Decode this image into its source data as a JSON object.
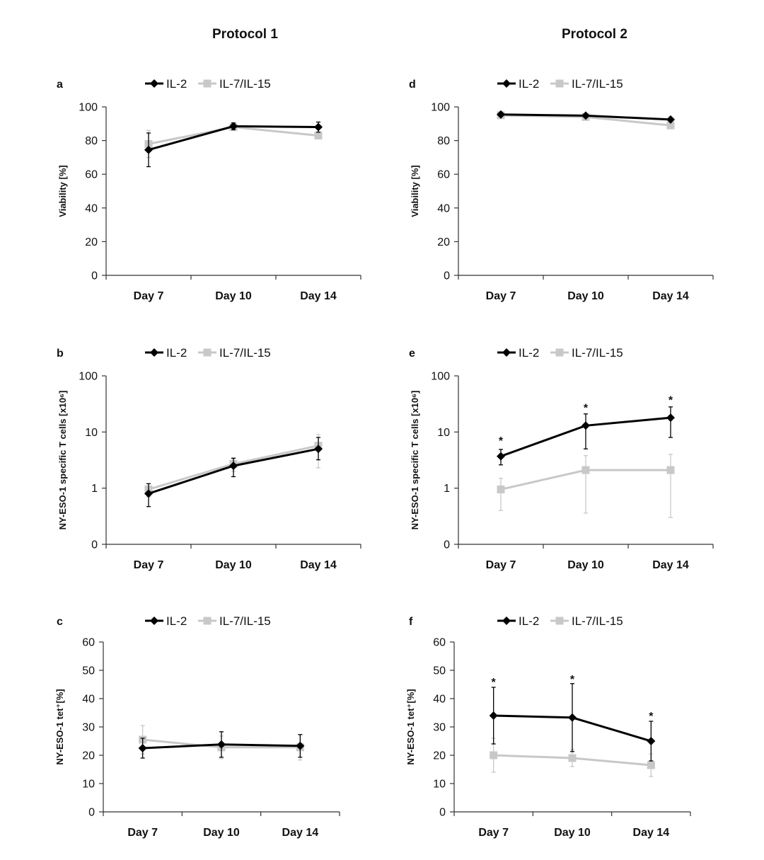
{
  "column_titles": [
    "Protocol 1",
    "Protocol 2"
  ],
  "colors": {
    "il2": "#000000",
    "il7": "#c8c8c8"
  },
  "chart_data": [
    {
      "panel": "a",
      "type": "line",
      "ylabel": "Viability [%]",
      "categories": [
        "Day 7",
        "Day 10",
        "Day 14"
      ],
      "yscale": "linear",
      "ylim": [
        0,
        100
      ],
      "yticks": [
        0,
        20,
        40,
        60,
        80,
        100
      ],
      "legend": "top",
      "series": [
        {
          "name": "IL-2",
          "marker": "diamond",
          "values": [
            74.5,
            88.5,
            88
          ],
          "errors": [
            10,
            2,
            3
          ]
        },
        {
          "name": "IL-7/IL-15",
          "marker": "square",
          "values": [
            78,
            88,
            83
          ],
          "errors": [
            8,
            2,
            1
          ]
        }
      ],
      "annotations": []
    },
    {
      "panel": "b",
      "type": "line",
      "ylabel": "NY-ESO-1 specific T cells [x10⁶]",
      "categories": [
        "Day 7",
        "Day 10",
        "Day 14"
      ],
      "yscale": "log",
      "ylim": [
        0.1,
        100
      ],
      "yticks": [
        0.1,
        1,
        10,
        100
      ],
      "ytick_labels": [
        "0",
        "1",
        "10",
        "100"
      ],
      "legend": "top",
      "series": [
        {
          "name": "IL-2",
          "marker": "diamond",
          "values": [
            0.8,
            2.5,
            5.0
          ],
          "err_low": [
            0.47,
            1.6,
            3.2
          ],
          "err_high": [
            1.2,
            3.4,
            8.0
          ]
        },
        {
          "name": "IL-7/IL-15",
          "marker": "square",
          "values": [
            0.95,
            2.7,
            5.7
          ],
          "err_low": [
            0.7,
            2.0,
            2.3
          ],
          "err_high": [
            1.2,
            3.5,
            9.0
          ]
        }
      ],
      "annotations": []
    },
    {
      "panel": "c",
      "type": "line",
      "ylabel": "NY-ESO-1 tet⁺[%]",
      "categories": [
        "Day 7",
        "Day 10",
        "Day 14"
      ],
      "yscale": "linear",
      "ylim": [
        0,
        60
      ],
      "yticks": [
        0,
        10,
        20,
        30,
        40,
        50,
        60
      ],
      "legend": "top",
      "series": [
        {
          "name": "IL-2",
          "marker": "diamond",
          "values": [
            22.5,
            23.8,
            23.3
          ],
          "errors": [
            3.5,
            4.5,
            4.0
          ]
        },
        {
          "name": "IL-7/IL-15",
          "marker": "square",
          "values": [
            25.5,
            22.8,
            22.8
          ],
          "errors": [
            5.0,
            4.0,
            4.5
          ]
        }
      ],
      "annotations": []
    },
    {
      "panel": "d",
      "type": "line",
      "ylabel": "Viability [%]",
      "categories": [
        "Day 7",
        "Day 10",
        "Day 14"
      ],
      "yscale": "linear",
      "ylim": [
        0,
        100
      ],
      "yticks": [
        0,
        20,
        40,
        60,
        80,
        100
      ],
      "legend": "top",
      "series": [
        {
          "name": "IL-2",
          "marker": "diamond",
          "values": [
            95.5,
            94.8,
            92.5
          ],
          "errors": [
            1,
            1,
            1
          ]
        },
        {
          "name": "IL-7/IL-15",
          "marker": "square",
          "values": [
            95,
            94,
            89
          ],
          "errors": [
            1.5,
            1,
            1
          ]
        }
      ],
      "annotations": []
    },
    {
      "panel": "e",
      "type": "line",
      "ylabel": "NY-ESO-1 specific T cells [x10⁶]",
      "categories": [
        "Day 7",
        "Day 10",
        "Day 14"
      ],
      "yscale": "log",
      "ylim": [
        0.1,
        100
      ],
      "yticks": [
        0.1,
        1,
        10,
        100
      ],
      "ytick_labels": [
        "0",
        "1",
        "10",
        "100"
      ],
      "legend": "top",
      "series": [
        {
          "name": "IL-2",
          "marker": "diamond",
          "values": [
            3.7,
            13,
            18
          ],
          "err_low": [
            2.6,
            5.0,
            8.0
          ],
          "err_high": [
            4.9,
            21,
            28
          ]
        },
        {
          "name": "IL-7/IL-15",
          "marker": "square",
          "values": [
            0.95,
            2.1,
            2.1
          ],
          "err_low": [
            0.4,
            0.36,
            0.3
          ],
          "err_high": [
            1.5,
            3.8,
            4.0
          ]
        }
      ],
      "annotations": [
        {
          "text": "*",
          "category": 0,
          "y": 7.5
        },
        {
          "text": "*",
          "category": 1,
          "y": 29
        },
        {
          "text": "*",
          "category": 2,
          "y": 40
        }
      ]
    },
    {
      "panel": "f",
      "type": "line",
      "ylabel": "NY-ESO-1 tet⁺[%]",
      "categories": [
        "Day 7",
        "Day 10",
        "Day 14"
      ],
      "yscale": "linear",
      "ylim": [
        0,
        60
      ],
      "yticks": [
        0,
        10,
        20,
        30,
        40,
        50,
        60
      ],
      "legend": "top",
      "series": [
        {
          "name": "IL-2",
          "marker": "diamond",
          "values": [
            34,
            33.3,
            25
          ],
          "errors": [
            10,
            12,
            7
          ]
        },
        {
          "name": "IL-7/IL-15",
          "marker": "square",
          "values": [
            20,
            19,
            16.5
          ],
          "errors": [
            6,
            3,
            4
          ]
        }
      ],
      "annotations": [
        {
          "text": "*",
          "category": 0,
          "y": 46.5
        },
        {
          "text": "*",
          "category": 1,
          "y": 47.5
        },
        {
          "text": "*",
          "category": 2,
          "y": 34.5
        }
      ]
    }
  ]
}
